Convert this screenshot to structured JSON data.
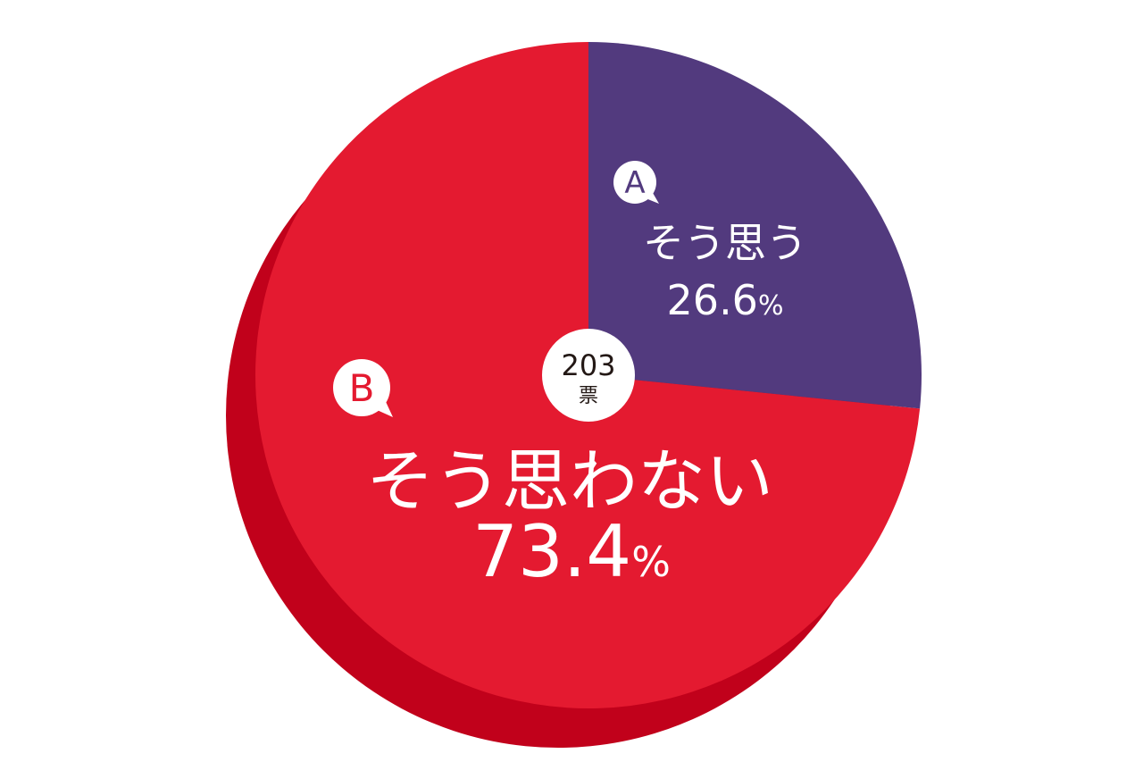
{
  "chart_data": {
    "type": "pie",
    "total": {
      "value": "203",
      "unit": "票"
    },
    "slices": [
      {
        "key": "A",
        "label": "そう思う",
        "value": 26.6,
        "value_text": "26.6",
        "unit": "%",
        "color": "#523a7e"
      },
      {
        "key": "B",
        "label": "そう思わない",
        "value": 73.4,
        "value_text": "73.4",
        "unit": "%",
        "color": "#e41a30"
      }
    ],
    "shadow_color": "#c1011b",
    "center_badge_color": "#ffffff",
    "center_text_color": "#231815"
  }
}
